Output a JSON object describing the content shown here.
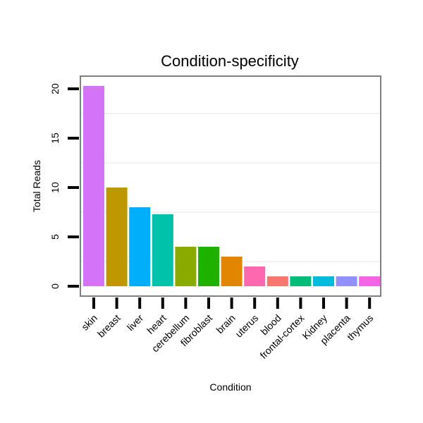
{
  "chart_data": {
    "type": "bar",
    "title": "Condition-specificity",
    "xlabel": "Condition",
    "ylabel": "Total Reads",
    "ylim": [
      -0.15,
      20.9
    ],
    "yticks": [
      0,
      5,
      10,
      15,
      20
    ],
    "grid": true,
    "legend": "none",
    "categories": [
      "skin",
      "breast",
      "liver",
      "heart",
      "cerebellum",
      "fibroblast",
      "brain",
      "uterus",
      "blood",
      "frontal-cortex",
      "Kidney",
      "placenta",
      "thymus"
    ],
    "values": [
      20.3,
      10,
      8,
      7.3,
      4,
      4,
      3,
      2,
      1,
      1,
      1,
      1,
      1
    ],
    "colors": [
      "#D374F8",
      "#BF9800",
      "#00AEFA",
      "#00C1AA",
      "#8AAA00",
      "#1EB100",
      "#E28500",
      "#FD68AE",
      "#F8766D",
      "#00BC79",
      "#00BBDA",
      "#9290FF",
      "#F564E3"
    ]
  }
}
